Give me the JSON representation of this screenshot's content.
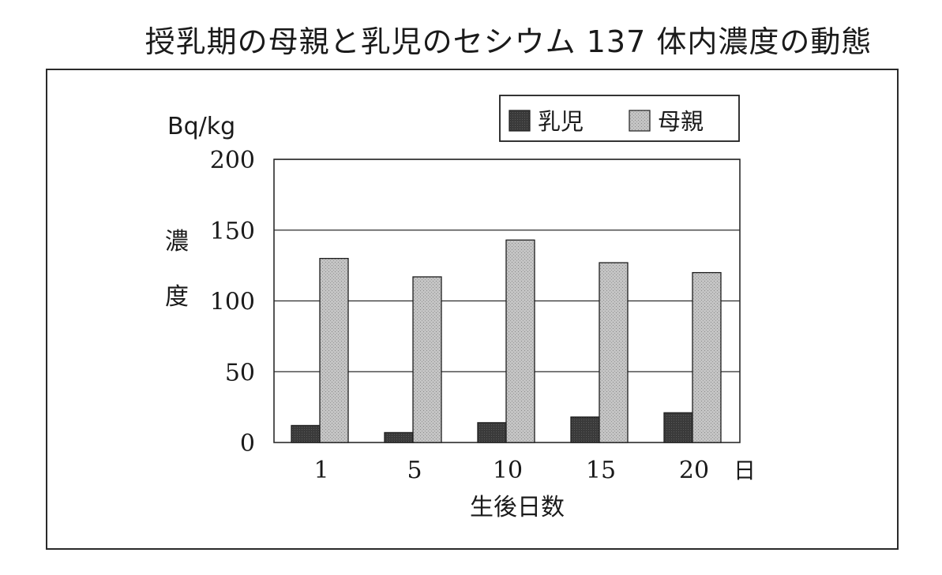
{
  "title": "授乳期の母親と乳児のセシウム 137 体内濃度の動態",
  "chart_data": {
    "type": "bar",
    "title": "授乳期の母親と乳児のセシウム 137 体内濃度の動態",
    "unit_label": "Bq/kg",
    "ylabel_chars": [
      "濃",
      "度"
    ],
    "xlabel": "生後日数",
    "x_unit": "日",
    "categories": [
      "1",
      "5",
      "10",
      "15",
      "20"
    ],
    "ylim": [
      0,
      200
    ],
    "yticks": [
      "0",
      "50",
      "100",
      "150",
      "200"
    ],
    "grid": true,
    "legend_position": "top-right",
    "series": [
      {
        "name": "乳児",
        "color": "#333333",
        "values": [
          12,
          7,
          14,
          18,
          21
        ]
      },
      {
        "name": "母親",
        "color": "#bdbdbd",
        "values": [
          130,
          117,
          143,
          127,
          120
        ]
      }
    ]
  }
}
